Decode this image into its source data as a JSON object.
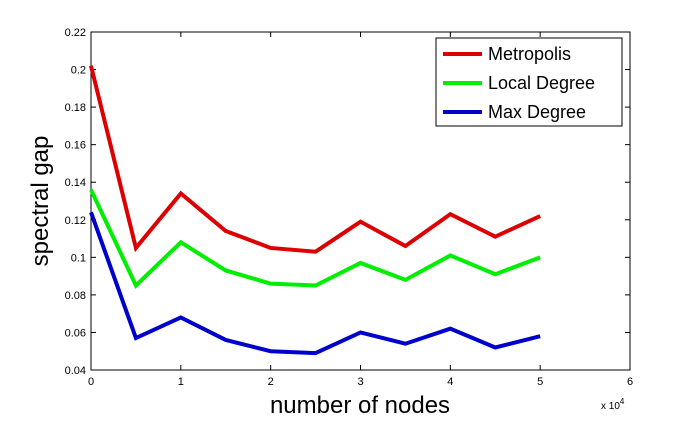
{
  "chart_data": {
    "type": "line",
    "xlabel": "number of nodes",
    "ylabel": "spectral gap",
    "x_multiplier_text": "x 10",
    "x_multiplier_exp": "4",
    "x": [
      0,
      0.5,
      1,
      1.5,
      2,
      2.5,
      3,
      3.5,
      4,
      4.5,
      5
    ],
    "xlim": [
      0,
      6
    ],
    "ylim": [
      0.04,
      0.22
    ],
    "xticks": [
      0,
      1,
      2,
      3,
      4,
      5,
      6
    ],
    "xtick_labels": [
      "0",
      "1",
      "2",
      "3",
      "4",
      "5",
      "6"
    ],
    "yticks": [
      0.04,
      0.06,
      0.08,
      0.1,
      0.12,
      0.14,
      0.16,
      0.18,
      0.2,
      0.22
    ],
    "ytick_labels": [
      "0.04",
      "0.06",
      "0.08",
      "0.1",
      "0.12",
      "0.14",
      "0.16",
      "0.18",
      "0.2",
      "0.22"
    ],
    "grid": false,
    "legend_position": "top-right",
    "series": [
      {
        "name": "Metropolis",
        "color": "#dd0000",
        "values": [
          0.202,
          0.105,
          0.134,
          0.114,
          0.105,
          0.103,
          0.119,
          0.106,
          0.123,
          0.111,
          0.122
        ]
      },
      {
        "name": "Local Degree",
        "color": "#00ee00",
        "values": [
          0.136,
          0.085,
          0.108,
          0.093,
          0.086,
          0.085,
          0.097,
          0.088,
          0.101,
          0.091,
          0.1
        ]
      },
      {
        "name": "Max Degree",
        "color": "#0000cc",
        "values": [
          0.124,
          0.057,
          0.068,
          0.056,
          0.05,
          0.049,
          0.06,
          0.054,
          0.062,
          0.052,
          0.058
        ]
      }
    ]
  }
}
